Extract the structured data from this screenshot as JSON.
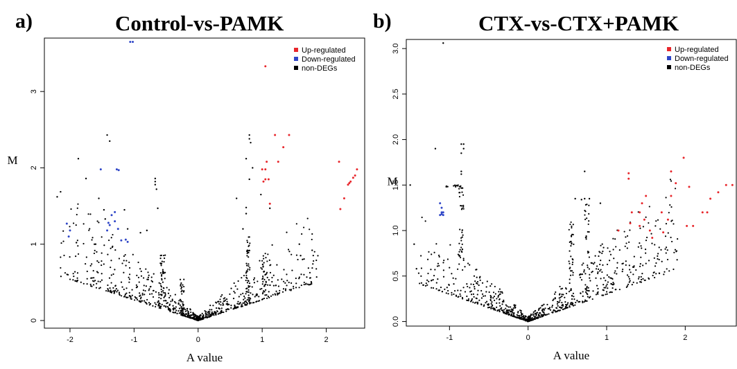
{
  "chart_data": [
    {
      "type": "scatter",
      "panel_label": "a)",
      "title": "Control-vs-PAMK",
      "xlabel": "A value",
      "ylabel": "M",
      "xlim": [
        -2.4,
        2.6
      ],
      "ylim": [
        -0.1,
        3.7
      ],
      "xticks": [
        -2,
        -1,
        0,
        1,
        2
      ],
      "yticks": [
        0,
        1,
        2,
        3
      ],
      "grid": false,
      "legend_position": "top-right",
      "series": [
        {
          "name": "Up-regulated",
          "color": "#e8262b",
          "points": [
            [
              1.05,
              3.33
            ],
            [
              1.2,
              2.43
            ],
            [
              1.42,
              2.43
            ],
            [
              1.33,
              2.27
            ],
            [
              1.25,
              2.08
            ],
            [
              1.0,
              1.98
            ],
            [
              1.05,
              1.98
            ],
            [
              1.07,
              2.08
            ],
            [
              1.05,
              1.85
            ],
            [
              1.1,
              1.85
            ],
            [
              1.02,
              1.82
            ],
            [
              1.12,
              1.53
            ],
            [
              2.2,
              2.08
            ],
            [
              2.28,
              1.6
            ],
            [
              2.22,
              1.46
            ],
            [
              2.48,
              1.98
            ],
            [
              2.45,
              1.9
            ],
            [
              2.42,
              1.87
            ],
            [
              2.38,
              1.82
            ],
            [
              2.36,
              1.8
            ],
            [
              2.34,
              1.78
            ]
          ]
        },
        {
          "name": "Down-regulated",
          "color": "#2f46c7",
          "points": [
            [
              -1.06,
              3.65
            ],
            [
              -1.02,
              3.65
            ],
            [
              -1.52,
              1.98
            ],
            [
              -1.27,
              1.98
            ],
            [
              -1.24,
              1.97
            ],
            [
              -1.4,
              1.28
            ],
            [
              -1.35,
              1.38
            ],
            [
              -1.3,
              1.42
            ],
            [
              -1.25,
              1.2
            ],
            [
              -1.42,
              1.18
            ],
            [
              -1.38,
              1.25
            ],
            [
              -1.3,
              1.3
            ],
            [
              -2.05,
              1.27
            ],
            [
              -2.0,
              1.18
            ],
            [
              -2.02,
              1.1
            ],
            [
              -1.13,
              1.06
            ],
            [
              -1.1,
              1.03
            ],
            [
              -1.2,
              1.05
            ]
          ]
        },
        {
          "name": "non-DEGs",
          "color": "#000000",
          "points": [],
          "described_as": "~850 points in a V-shaped band opening upward from (0,0); lower envelope M ≈ 0.27·|A|, density decreasing with |A|; vertical streaks near A=-0.6, -0.25, 0.8, 1.05",
          "notable_points": [
            [
              -1.42,
              2.43
            ],
            [
              -1.38,
              2.35
            ],
            [
              -1.87,
              2.12
            ],
            [
              -1.75,
              1.86
            ],
            [
              -0.67,
              1.86
            ],
            [
              -0.67,
              1.82
            ],
            [
              -0.67,
              1.78
            ],
            [
              -0.65,
              1.72
            ],
            [
              -1.55,
              1.6
            ],
            [
              -1.45,
              1.33
            ],
            [
              -1.47,
              1.45
            ],
            [
              -0.63,
              1.47
            ],
            [
              -1.15,
              1.45
            ],
            [
              -0.8,
              1.18
            ],
            [
              -1.1,
              1.2
            ],
            [
              -0.9,
              1.15
            ],
            [
              0.8,
              2.43
            ],
            [
              0.8,
              2.38
            ],
            [
              0.82,
              2.33
            ],
            [
              0.75,
              2.12
            ],
            [
              0.85,
              2.0
            ],
            [
              0.8,
              1.85
            ],
            [
              0.6,
              1.6
            ],
            [
              0.98,
              1.65
            ],
            [
              0.75,
              1.48
            ],
            [
              0.75,
              1.4
            ],
            [
              0.7,
              1.2
            ],
            [
              1.12,
              1.47
            ],
            [
              1.58,
              1.0
            ],
            [
              1.63,
              0.8
            ],
            [
              1.78,
              0.92
            ],
            [
              1.6,
              0.85
            ],
            [
              -2.2,
              1.62
            ],
            [
              -1.6,
              1.0
            ],
            [
              -1.9,
              1.02
            ]
          ]
        }
      ]
    },
    {
      "type": "scatter",
      "panel_label": "b)",
      "title": "CTX-vs-CTX+PAMK",
      "xlabel": "A value",
      "ylabel": "M",
      "xlim": [
        -1.55,
        2.65
      ],
      "ylim": [
        -0.05,
        3.1
      ],
      "xticks": [
        -1,
        0,
        1,
        2
      ],
      "yticks": [
        "0.0",
        "0.5",
        "1.0",
        "1.5",
        "2.0",
        "2.5",
        "3.0"
      ],
      "grid": false,
      "legend_position": "top-right",
      "series": [
        {
          "name": "Up-regulated",
          "color": "#e8262b",
          "points": [
            [
              1.28,
              1.63
            ],
            [
              1.28,
              1.57
            ],
            [
              1.32,
              1.2
            ],
            [
              1.42,
              1.2
            ],
            [
              1.45,
              1.3
            ],
            [
              1.5,
              1.38
            ],
            [
              1.42,
              1.05
            ],
            [
              1.48,
              1.12
            ],
            [
              1.55,
              1.0
            ],
            [
              1.3,
              1.08
            ],
            [
              1.15,
              1.0
            ],
            [
              1.7,
              1.2
            ],
            [
              1.78,
              1.12
            ],
            [
              1.82,
              1.65
            ],
            [
              1.82,
              1.38
            ],
            [
              1.88,
              1.52
            ],
            [
              1.98,
              1.8
            ],
            [
              2.02,
              1.05
            ],
            [
              2.05,
              1.48
            ],
            [
              2.1,
              1.05
            ],
            [
              2.22,
              1.2
            ],
            [
              2.28,
              1.2
            ],
            [
              2.32,
              1.35
            ],
            [
              2.42,
              1.42
            ],
            [
              2.52,
              1.5
            ],
            [
              2.6,
              1.5
            ],
            [
              1.72,
              0.98
            ],
            [
              1.58,
              0.92
            ]
          ]
        },
        {
          "name": "Down-regulated",
          "color": "#2f46c7",
          "points": [
            [
              -1.12,
              1.3
            ],
            [
              -1.1,
              1.25
            ],
            [
              -1.1,
              1.2
            ],
            [
              -1.08,
              1.2
            ],
            [
              -1.1,
              1.18
            ],
            [
              -1.12,
              1.17
            ],
            [
              -1.08,
              1.17
            ]
          ]
        },
        {
          "name": "non-DEGs",
          "color": "#000000",
          "points": [],
          "described_as": "~850 points in a V-shaped band opening upward from (0,0); lower envelope M ≈ 0.3·|A|, dense near origin; stacked horizontal rows near A=-0.9 at M=1.5, vertical streaks near A=-0.85, 0.55, 0.75",
          "notable_points": [
            [
              -1.08,
              3.06
            ],
            [
              -0.82,
              1.95
            ],
            [
              -0.85,
              1.95
            ],
            [
              -0.82,
              1.9
            ],
            [
              -0.85,
              1.85
            ],
            [
              -1.18,
              1.9
            ],
            [
              -1.5,
              1.5
            ],
            [
              -0.85,
              1.65
            ],
            [
              -0.85,
              1.62
            ],
            [
              0.72,
              1.65
            ],
            [
              0.72,
              1.35
            ],
            [
              0.78,
              1.35
            ],
            [
              0.6,
              1.35
            ],
            [
              0.68,
              1.34
            ],
            [
              0.92,
              1.3
            ],
            [
              -1.45,
              0.85
            ],
            [
              -1.42,
              0.58
            ]
          ]
        }
      ]
    }
  ],
  "legend": {
    "up_label": "Up-regulated",
    "down_label": "Down-regulated",
    "non_label": "non-DEGs"
  }
}
